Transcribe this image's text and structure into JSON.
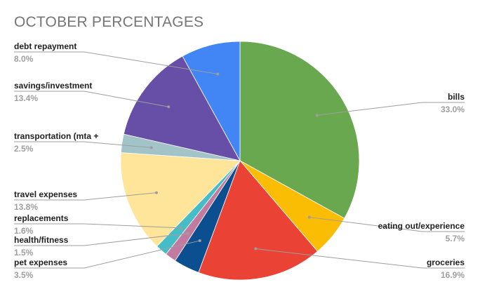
{
  "chart_data": {
    "type": "pie",
    "title": "OCTOBER PERCENTAGES",
    "start": "12 o'clock, clockwise",
    "slices": [
      {
        "label": "bills",
        "value_label": "33.0%",
        "value": 33.0,
        "color": "#6aa84f"
      },
      {
        "label": "eating out/experience",
        "value_label": "5.7%",
        "value": 5.7,
        "color": "#fbbc04"
      },
      {
        "label": "groceries",
        "value_label": "16.9%",
        "value": 16.9,
        "color": "#ea4335"
      },
      {
        "label": "pet expenses",
        "value_label": "3.5%",
        "value": 3.5,
        "color": "#0b4f91"
      },
      {
        "label": "health/fitness",
        "value_label": "1.5%",
        "value": 1.5,
        "color": "#c27ba0"
      },
      {
        "label": "replacements",
        "value_label": "1.6%",
        "value": 1.6,
        "color": "#46bdc6"
      },
      {
        "label": "travel expenses",
        "value_label": "13.8%",
        "value": 13.8,
        "color": "#ffe599"
      },
      {
        "label": "transportation (mta +",
        "value_label": "2.5%",
        "value": 2.5,
        "color": "#a2c4c9"
      },
      {
        "label": "savings/investment",
        "value_label": "13.4%",
        "value": 13.4,
        "color": "#674ea7"
      },
      {
        "label": "debt repayment",
        "value_label": "8.0%",
        "value": 8.0,
        "color": "#4285f4"
      }
    ]
  }
}
